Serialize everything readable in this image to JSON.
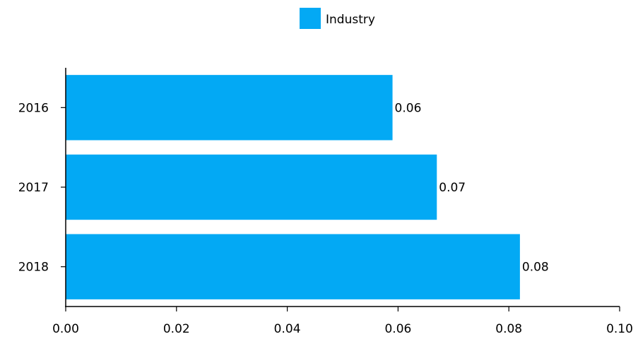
{
  "chart_data": {
    "type": "bar",
    "orientation": "horizontal",
    "categories": [
      "2016",
      "2017",
      "2018"
    ],
    "series": [
      {
        "name": "Industry",
        "values": [
          0.059,
          0.067,
          0.082
        ],
        "color": "#03a9f4"
      }
    ],
    "data_labels": [
      "0.06",
      "0.07",
      "0.08"
    ],
    "xlim": [
      0,
      0.1
    ],
    "x_ticks": [
      "0.00",
      "0.02",
      "0.04",
      "0.06",
      "0.08",
      "0.10"
    ],
    "grid": false,
    "legend_position": "top-center"
  }
}
